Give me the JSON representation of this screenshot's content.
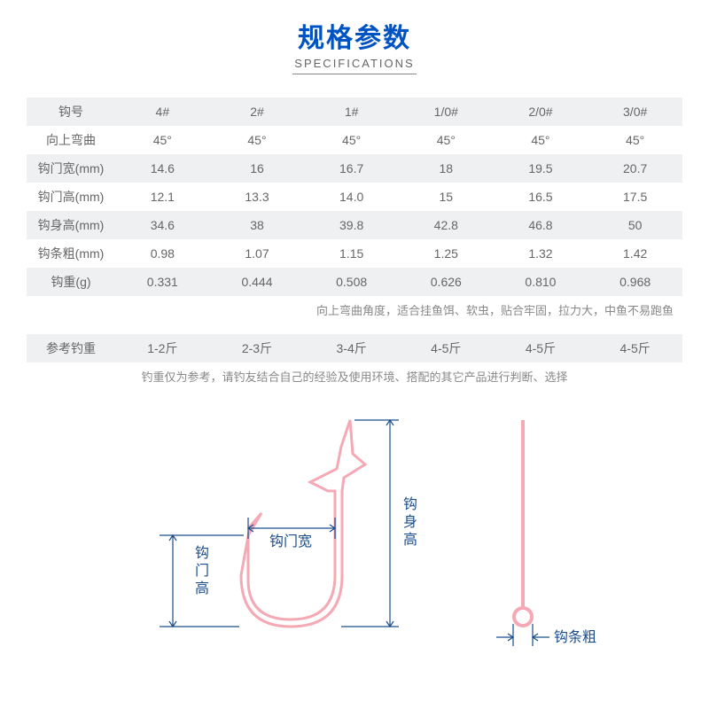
{
  "header": {
    "title_cn": "规格参数",
    "title_en": "SPECIFICATIONS"
  },
  "table": {
    "columns": [
      "钩号",
      "4#",
      "2#",
      "1#",
      "1/0#",
      "2/0#",
      "3/0#"
    ],
    "rows": [
      {
        "label": "向上弯曲",
        "cells": [
          "45°",
          "45°",
          "45°",
          "45°",
          "45°",
          "45°"
        ],
        "shaded": false
      },
      {
        "label": "钩门宽(mm)",
        "cells": [
          "14.6",
          "16",
          "16.7",
          "18",
          "19.5",
          "20.7"
        ],
        "shaded": true
      },
      {
        "label": "钩门高(mm)",
        "cells": [
          "12.1",
          "13.3",
          "14.0",
          "15",
          "16.5",
          "17.5"
        ],
        "shaded": false
      },
      {
        "label": "钩身高(mm)",
        "cells": [
          "34.6",
          "38",
          "39.8",
          "42.8",
          "46.8",
          "50"
        ],
        "shaded": true
      },
      {
        "label": "钩条粗(mm)",
        "cells": [
          "0.98",
          "1.07",
          "1.15",
          "1.25",
          "1.32",
          "1.42"
        ],
        "shaded": false
      },
      {
        "label": "钩重(g)",
        "cells": [
          "0.331",
          "0.444",
          "0.508",
          "0.626",
          "0.810",
          "0.968"
        ],
        "shaded": true
      }
    ],
    "note1": "向上弯曲角度，适合挂鱼饵、软虫，贴合牢固，拉力大，中鱼不易跑鱼",
    "ref_row": {
      "label": "参考钓重",
      "cells": [
        "1-2斤",
        "2-3斤",
        "3-4斤",
        "4-5斤",
        "4-5斤",
        "4-5斤"
      ],
      "shaded": true
    },
    "note2": "钓重仅为参考，请钓友结合自己的经验及使用环境、搭配的其它产品进行判断、选择"
  },
  "diagram": {
    "hook_color": "#f4a9b4",
    "line_color": "#1a4d8c",
    "text_color": "#1a4d8c",
    "labels": {
      "gate_width": "钩门宽",
      "gate_height": "钩门高",
      "body_height": "钩身高",
      "wire_thick": "钩条粗"
    },
    "body_height_chars": [
      "钩",
      "身",
      "高"
    ],
    "gate_height_chars": [
      "钩",
      "门",
      "高"
    ]
  },
  "colors": {
    "title": "#0053c2",
    "text": "#666",
    "shaded_bg": "#eef0f2",
    "note": "#888"
  }
}
